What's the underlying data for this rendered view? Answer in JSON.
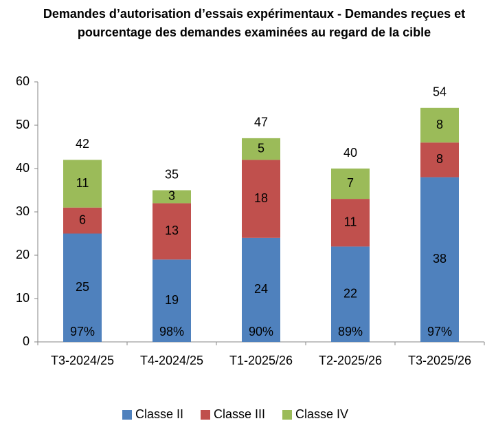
{
  "chart_data": {
    "type": "stacked_bar",
    "title": [
      "Demandes d’autorisation d’essais expérimentaux - Demandes reçues et",
      "pourcentage des demandes examinées au regard de la cible"
    ],
    "categories": [
      "T3-2024/25",
      "T4-2024/25",
      "T1-2025/26",
      "T2-2025/26",
      "T3-2025/26"
    ],
    "series": [
      {
        "name": "Classe II",
        "color": "#4f81bd",
        "values": [
          25,
          19,
          24,
          22,
          38
        ]
      },
      {
        "name": "Classe III",
        "color": "#c0504d",
        "values": [
          6,
          13,
          18,
          11,
          8
        ]
      },
      {
        "name": "Classe IV",
        "color": "#9bbb59",
        "values": [
          11,
          3,
          5,
          7,
          8
        ]
      }
    ],
    "totals": [
      42,
      35,
      47,
      40,
      54
    ],
    "percent_values": [
      97,
      98,
      90,
      89,
      97
    ],
    "percent_labels": [
      "97%",
      "98%",
      "90%",
      "89%",
      "97%"
    ],
    "ylim": [
      0,
      60
    ],
    "yticks": [
      0,
      10,
      20,
      30,
      40,
      50,
      60
    ],
    "grid": false,
    "legend": "bottom"
  }
}
